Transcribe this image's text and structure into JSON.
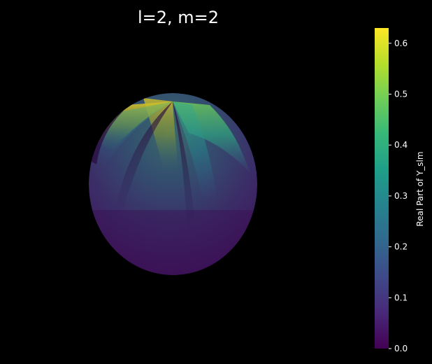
{
  "chart_data": {
    "type": "heatmap",
    "subtype": "3d-surface-sphere",
    "title": "l=2, m=2",
    "colorbar": {
      "label": "Real Part of Y_slm",
      "range": [
        0.0,
        0.63
      ],
      "ticks": [
        0.0,
        0.1,
        0.2,
        0.3,
        0.4,
        0.5,
        0.6
      ],
      "tick_labels": [
        "0.0",
        "0.1",
        "0.2",
        "0.3",
        "0.4",
        "0.5",
        "0.6"
      ],
      "colormap": "viridis",
      "orientation": "vertical",
      "placement": "right"
    },
    "axes_visible": false,
    "grid": false
  },
  "colors": {
    "background": "#000000",
    "text": "#ffffff",
    "viridis_stops": [
      "#440154",
      "#482878",
      "#3e4989",
      "#31688e",
      "#26828e",
      "#1f9e89",
      "#35b779",
      "#6ece58",
      "#b5de2b",
      "#fde725"
    ]
  }
}
